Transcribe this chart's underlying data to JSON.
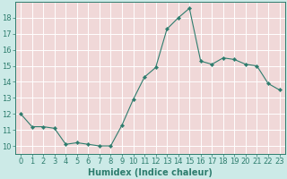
{
  "x": [
    0,
    1,
    2,
    3,
    4,
    5,
    6,
    7,
    8,
    9,
    10,
    11,
    12,
    13,
    14,
    15,
    16,
    17,
    18,
    19,
    20,
    21,
    22,
    23
  ],
  "y": [
    12.0,
    11.2,
    11.2,
    11.1,
    10.1,
    10.2,
    10.1,
    10.0,
    10.0,
    11.3,
    12.9,
    14.3,
    14.9,
    17.3,
    18.0,
    18.6,
    15.3,
    15.1,
    15.5,
    15.4,
    15.1,
    15.0,
    13.9,
    13.5
  ],
  "xlabel": "Humidex (Indice chaleur)",
  "ylim": [
    9.5,
    19.0
  ],
  "xlim": [
    -0.5,
    23.5
  ],
  "yticks": [
    10,
    11,
    12,
    13,
    14,
    15,
    16,
    17,
    18
  ],
  "xticks": [
    0,
    1,
    2,
    3,
    4,
    5,
    6,
    7,
    8,
    9,
    10,
    11,
    12,
    13,
    14,
    15,
    16,
    17,
    18,
    19,
    20,
    21,
    22,
    23
  ],
  "line_color": "#2e7d6e",
  "marker_color": "#2e7d6e",
  "bg_color": "#cceae7",
  "cell_color": "#f0d8d8",
  "grid_color": "#ffffff",
  "tick_color": "#2e7d6e",
  "label_color": "#2e7d6e",
  "font_size": 6,
  "xlabel_fontsize": 7
}
